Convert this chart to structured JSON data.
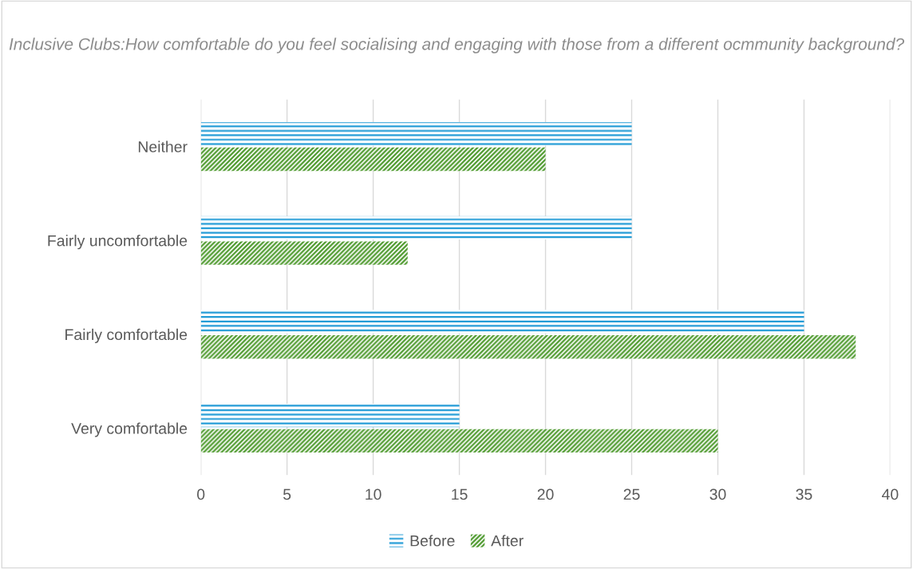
{
  "chart_data": {
    "type": "bar",
    "orientation": "horizontal",
    "title": "Inclusive Clubs:How comfortable do you feel socialising and engaging with those from a different ocmmunity background?",
    "categories": [
      "Neither",
      "Fairly uncomfortable",
      "Fairly comfortable",
      "Very comfortable"
    ],
    "series": [
      {
        "name": "Before",
        "color": "#1f9ad6",
        "values": [
          25,
          25,
          35,
          15
        ]
      },
      {
        "name": "After",
        "color": "#4e9a2e",
        "values": [
          20,
          12,
          38,
          30
        ]
      }
    ],
    "xlim": [
      0,
      40
    ],
    "xticks": [
      0,
      5,
      10,
      15,
      20,
      25,
      30,
      35,
      40
    ],
    "grid": "x",
    "legend": "bottom"
  }
}
